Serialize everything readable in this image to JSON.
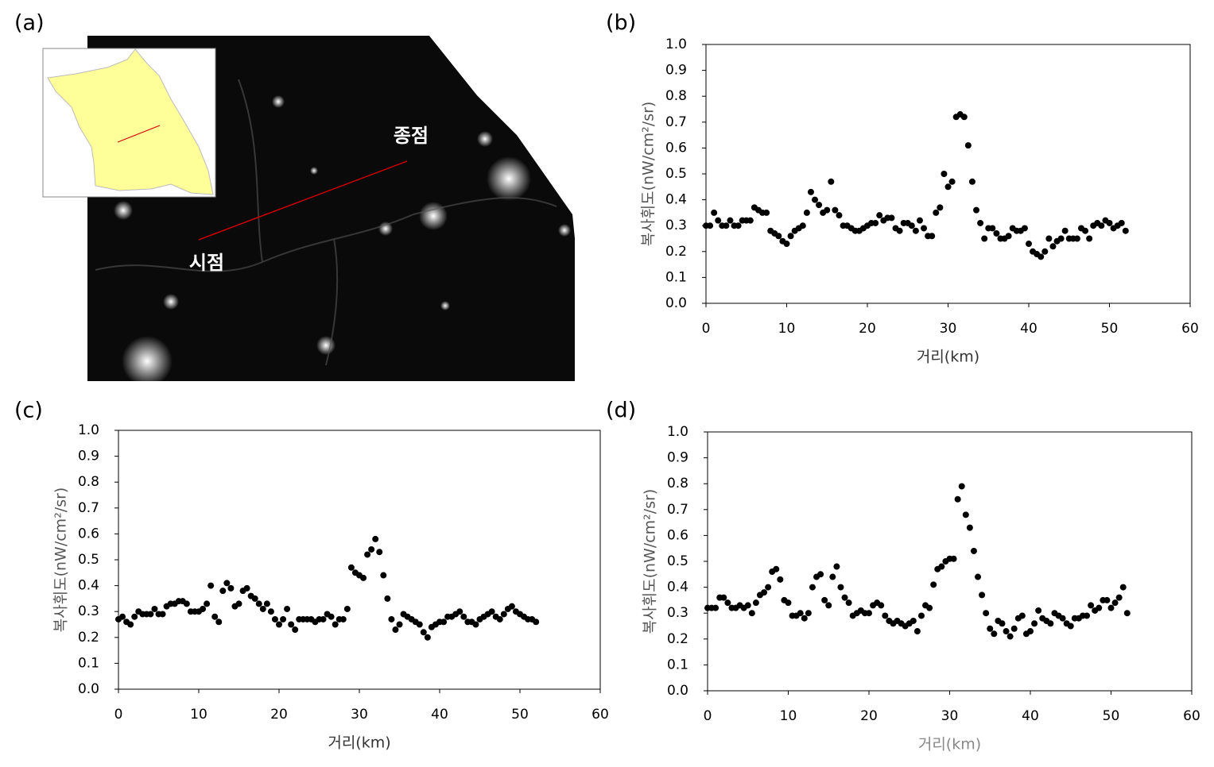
{
  "map": {
    "label": "(a)",
    "start": "시점",
    "end": "종점"
  },
  "chart_data": [
    {
      "type": "scatter",
      "label": "(b)",
      "xlabel": "거리(km)",
      "ylabel": "복사휘도(nW/cm²/sr)",
      "color": "#000000",
      "xlim": [
        0,
        60
      ],
      "xticks": [
        0,
        10,
        20,
        30,
        40,
        50,
        60
      ],
      "ylim": [
        0,
        1
      ],
      "yticks": [
        {
          "value": 0,
          "label": "0.0"
        },
        0.1,
        0.2,
        0.3,
        0.4,
        0.5,
        0.6,
        0.7,
        0.8,
        0.9,
        {
          "value": 1,
          "label": "1.0"
        }
      ],
      "x": [
        0,
        0.5,
        1,
        1.5,
        2,
        2.5,
        3,
        3.5,
        4,
        4.5,
        5,
        5.5,
        6,
        6.5,
        7,
        7.5,
        8,
        8.5,
        9,
        9.5,
        10,
        10.5,
        11,
        11.5,
        12,
        12.5,
        13,
        13.5,
        14,
        14.5,
        15,
        15.5,
        16,
        16.5,
        17,
        17.5,
        18,
        18.5,
        19,
        19.5,
        20,
        20.5,
        21,
        21.5,
        22,
        22.5,
        23,
        23.5,
        24,
        24.5,
        25,
        25.5,
        26,
        26.5,
        27,
        27.5,
        28,
        28.5,
        29,
        29.5,
        30,
        30.5,
        31,
        31.5,
        32,
        32.5,
        33,
        33.5,
        34,
        34.5,
        35,
        35.5,
        36,
        36.5,
        37,
        37.5,
        38,
        38.5,
        39,
        39.5,
        40,
        40.5,
        41,
        41.5,
        42,
        42.5,
        43,
        43.5,
        44,
        44.5,
        45,
        45.5,
        46,
        46.5,
        47,
        47.5,
        48,
        48.5,
        49,
        49.5,
        50,
        50.5,
        51,
        51.5,
        52
      ],
      "values": [
        0.3,
        0.3,
        0.35,
        0.32,
        0.3,
        0.3,
        0.32,
        0.3,
        0.3,
        0.32,
        0.32,
        0.32,
        0.37,
        0.36,
        0.35,
        0.35,
        0.28,
        0.27,
        0.26,
        0.24,
        0.23,
        0.26,
        0.28,
        0.29,
        0.3,
        0.35,
        0.43,
        0.4,
        0.38,
        0.35,
        0.36,
        0.47,
        0.36,
        0.34,
        0.3,
        0.3,
        0.29,
        0.28,
        0.28,
        0.29,
        0.3,
        0.31,
        0.31,
        0.34,
        0.32,
        0.33,
        0.33,
        0.29,
        0.28,
        0.31,
        0.31,
        0.3,
        0.28,
        0.32,
        0.29,
        0.26,
        0.26,
        0.35,
        0.37,
        0.5,
        0.45,
        0.47,
        0.72,
        0.73,
        0.72,
        0.61,
        0.47,
        0.36,
        0.31,
        0.25,
        0.29,
        0.29,
        0.27,
        0.25,
        0.25,
        0.26,
        0.29,
        0.28,
        0.28,
        0.29,
        0.23,
        0.2,
        0.19,
        0.18,
        0.2,
        0.25,
        0.22,
        0.24,
        0.25,
        0.28,
        0.25,
        0.25,
        0.25,
        0.29,
        0.28,
        0.25,
        0.3,
        0.31,
        0.3,
        0.32,
        0.31,
        0.29,
        0.3,
        0.31,
        0.28
      ]
    },
    {
      "type": "scatter",
      "label": "(c)",
      "xlabel": "거리(km)",
      "ylabel": "복사휘도(nW/cm²/sr)",
      "color": "#000000",
      "xlim": [
        0,
        60
      ],
      "xticks": [
        0,
        10,
        20,
        30,
        40,
        50,
        60
      ],
      "ylim": [
        0,
        1
      ],
      "yticks": [
        {
          "value": 0,
          "label": "0.0"
        },
        0.1,
        0.2,
        0.3,
        0.4,
        0.5,
        0.6,
        0.7,
        0.8,
        0.9,
        {
          "value": 1,
          "label": "1.0"
        }
      ],
      "x": [
        0,
        0.5,
        1,
        1.5,
        2,
        2.5,
        3,
        3.5,
        4,
        4.5,
        5,
        5.5,
        6,
        6.5,
        7,
        7.5,
        8,
        8.5,
        9,
        9.5,
        10,
        10.5,
        11,
        11.5,
        12,
        12.5,
        13,
        13.5,
        14,
        14.5,
        15,
        15.5,
        16,
        16.5,
        17,
        17.5,
        18,
        18.5,
        19,
        19.5,
        20,
        20.5,
        21,
        21.5,
        22,
        22.5,
        23,
        23.5,
        24,
        24.5,
        25,
        25.5,
        26,
        26.5,
        27,
        27.5,
        28,
        28.5,
        29,
        29.5,
        30,
        30.5,
        31,
        31.5,
        32,
        32.5,
        33,
        33.5,
        34,
        34.5,
        35,
        35.5,
        36,
        36.5,
        37,
        37.5,
        38,
        38.5,
        39,
        39.5,
        40,
        40.5,
        41,
        41.5,
        42,
        42.5,
        43,
        43.5,
        44,
        44.5,
        45,
        45.5,
        46,
        46.5,
        47,
        47.5,
        48,
        48.5,
        49,
        49.5,
        50,
        50.5,
        51,
        51.5,
        52
      ],
      "values": [
        0.27,
        0.28,
        0.26,
        0.25,
        0.28,
        0.3,
        0.29,
        0.29,
        0.29,
        0.31,
        0.29,
        0.29,
        0.32,
        0.33,
        0.33,
        0.34,
        0.34,
        0.33,
        0.3,
        0.3,
        0.3,
        0.31,
        0.33,
        0.4,
        0.28,
        0.26,
        0.38,
        0.41,
        0.39,
        0.32,
        0.33,
        0.38,
        0.39,
        0.36,
        0.35,
        0.33,
        0.31,
        0.33,
        0.3,
        0.27,
        0.25,
        0.27,
        0.31,
        0.25,
        0.23,
        0.27,
        0.27,
        0.27,
        0.27,
        0.26,
        0.27,
        0.27,
        0.29,
        0.28,
        0.25,
        0.27,
        0.27,
        0.31,
        0.47,
        0.45,
        0.44,
        0.43,
        0.52,
        0.54,
        0.58,
        0.53,
        0.44,
        0.35,
        0.27,
        0.23,
        0.25,
        0.29,
        0.28,
        0.27,
        0.26,
        0.25,
        0.22,
        0.2,
        0.24,
        0.25,
        0.26,
        0.26,
        0.28,
        0.28,
        0.29,
        0.3,
        0.28,
        0.26,
        0.26,
        0.25,
        0.27,
        0.28,
        0.29,
        0.3,
        0.28,
        0.27,
        0.29,
        0.31,
        0.32,
        0.3,
        0.29,
        0.28,
        0.27,
        0.27,
        0.26
      ]
    },
    {
      "type": "scatter",
      "label": "(d)",
      "xlabel": "거리(km)",
      "xlabel_color": "#888888",
      "ylabel": "복사휘도(nW/cm²/sr)",
      "color": "#000000",
      "xlim": [
        0,
        60
      ],
      "xticks": [
        0,
        10,
        20,
        30,
        40,
        50,
        60
      ],
      "ylim": [
        0,
        1
      ],
      "yticks": [
        {
          "value": 0,
          "label": "0.0"
        },
        0.1,
        0.2,
        0.3,
        0.4,
        0.5,
        0.6,
        0.7,
        0.8,
        0.9,
        {
          "value": 1,
          "label": "1.0"
        }
      ],
      "x": [
        0,
        0.5,
        1,
        1.5,
        2,
        2.5,
        3,
        3.5,
        4,
        4.5,
        5,
        5.5,
        6,
        6.5,
        7,
        7.5,
        8,
        8.5,
        9,
        9.5,
        10,
        10.5,
        11,
        11.5,
        12,
        12.5,
        13,
        13.5,
        14,
        14.5,
        15,
        15.5,
        16,
        16.5,
        17,
        17.5,
        18,
        18.5,
        19,
        19.5,
        20,
        20.5,
        21,
        21.5,
        22,
        22.5,
        23,
        23.5,
        24,
        24.5,
        25,
        25.5,
        26,
        26.5,
        27,
        27.5,
        28,
        28.5,
        29,
        29.5,
        30,
        30.5,
        31,
        31.5,
        32,
        32.5,
        33,
        33.5,
        34,
        34.5,
        35,
        35.5,
        36,
        36.5,
        37,
        37.5,
        38,
        38.5,
        39,
        39.5,
        40,
        40.5,
        41,
        41.5,
        42,
        42.5,
        43,
        43.5,
        44,
        44.5,
        45,
        45.5,
        46,
        46.5,
        47,
        47.5,
        48,
        48.5,
        49,
        49.5,
        50,
        50.5,
        51,
        51.5,
        52
      ],
      "values": [
        0.32,
        0.32,
        0.32,
        0.36,
        0.36,
        0.34,
        0.32,
        0.32,
        0.33,
        0.32,
        0.33,
        0.3,
        0.34,
        0.37,
        0.38,
        0.4,
        0.46,
        0.47,
        0.43,
        0.35,
        0.34,
        0.29,
        0.29,
        0.3,
        0.28,
        0.3,
        0.4,
        0.44,
        0.45,
        0.35,
        0.33,
        0.44,
        0.48,
        0.4,
        0.36,
        0.34,
        0.29,
        0.3,
        0.31,
        0.3,
        0.3,
        0.33,
        0.34,
        0.33,
        0.29,
        0.27,
        0.26,
        0.27,
        0.26,
        0.25,
        0.26,
        0.27,
        0.23,
        0.29,
        0.33,
        0.32,
        0.41,
        0.47,
        0.48,
        0.5,
        0.51,
        0.51,
        0.74,
        0.79,
        0.68,
        0.63,
        0.54,
        0.44,
        0.37,
        0.3,
        0.24,
        0.22,
        0.27,
        0.26,
        0.23,
        0.21,
        0.24,
        0.28,
        0.29,
        0.22,
        0.23,
        0.26,
        0.31,
        0.28,
        0.27,
        0.26,
        0.3,
        0.29,
        0.28,
        0.26,
        0.25,
        0.28,
        0.28,
        0.29,
        0.29,
        0.33,
        0.31,
        0.32,
        0.35,
        0.35,
        0.32,
        0.34,
        0.36,
        0.4,
        0.3
      ]
    }
  ]
}
